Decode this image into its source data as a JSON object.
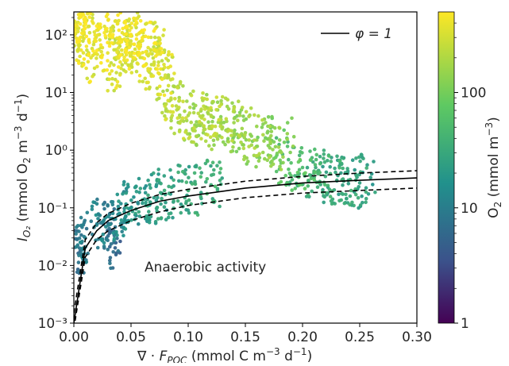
{
  "chart_data": {
    "type": "scatter",
    "title": "",
    "xlabel": "∇ · F_POC (mmol C m⁻³ d⁻¹)",
    "ylabel": "I_O₂ (mmol O₂ m⁻³ d⁻¹)",
    "x_axis": {
      "range": [
        0.0,
        0.3
      ],
      "scale": "linear",
      "ticks": [
        0.0,
        0.05,
        0.1,
        0.15,
        0.2,
        0.25,
        0.3
      ],
      "tick_labels": [
        "0.00",
        "0.05",
        "0.10",
        "0.15",
        "0.20",
        "0.25",
        "0.30"
      ]
    },
    "y_axis": {
      "range": [
        0.001,
        250
      ],
      "scale": "log",
      "ticks": [
        0.001,
        0.01,
        0.1,
        1,
        10,
        100
      ],
      "tick_labels": [
        "10⁻³",
        "10⁻²",
        "10⁻¹",
        "10⁰",
        "10¹",
        "10²"
      ]
    },
    "colorbar": {
      "label": "O₂ (mmol m⁻³)",
      "scale": "log",
      "range": [
        1,
        500
      ],
      "ticks": [
        1,
        10,
        100
      ],
      "tick_labels": [
        "1",
        "10",
        "100"
      ],
      "colormap": "viridis",
      "colors": [
        "#440154",
        "#3b528b",
        "#21918c",
        "#5ec962",
        "#fde725"
      ]
    },
    "legend": {
      "position": "top-right",
      "entries": [
        {
          "label": "φ = 1",
          "style": "solid",
          "color": "#000000"
        }
      ]
    },
    "annotations": [
      {
        "text": "Anaerobic activity"
      }
    ],
    "series": [
      {
        "type": "scatter",
        "color_by": "O₂",
        "description_points": [
          {
            "x": 0.002,
            "y": 150,
            "o2": 400
          },
          {
            "x": 0.005,
            "y": 80,
            "o2": 380
          },
          {
            "x": 0.01,
            "y": 200,
            "o2": 420
          },
          {
            "x": 0.015,
            "y": 40,
            "o2": 350
          },
          {
            "x": 0.02,
            "y": 120,
            "o2": 400
          },
          {
            "x": 0.025,
            "y": 60,
            "o2": 370
          },
          {
            "x": 0.03,
            "y": 180,
            "o2": 430
          },
          {
            "x": 0.035,
            "y": 30,
            "o2": 300
          },
          {
            "x": 0.04,
            "y": 90,
            "o2": 380
          },
          {
            "x": 0.045,
            "y": 50,
            "o2": 350
          },
          {
            "x": 0.05,
            "y": 70,
            "o2": 360
          },
          {
            "x": 0.055,
            "y": 100,
            "o2": 380
          },
          {
            "x": 0.06,
            "y": 40,
            "o2": 330
          },
          {
            "x": 0.065,
            "y": 60,
            "o2": 350
          },
          {
            "x": 0.07,
            "y": 30,
            "o2": 320
          },
          {
            "x": 0.075,
            "y": 50,
            "o2": 340
          },
          {
            "x": 0.08,
            "y": 20,
            "o2": 300
          },
          {
            "x": 0.085,
            "y": 8,
            "o2": 250
          },
          {
            "x": 0.09,
            "y": 5,
            "o2": 220
          },
          {
            "x": 0.1,
            "y": 4,
            "o2": 200
          },
          {
            "x": 0.11,
            "y": 3,
            "o2": 180
          },
          {
            "x": 0.12,
            "y": 4,
            "o2": 190
          },
          {
            "x": 0.13,
            "y": 2.5,
            "o2": 170
          },
          {
            "x": 0.14,
            "y": 3,
            "o2": 160
          },
          {
            "x": 0.15,
            "y": 2,
            "o2": 150
          },
          {
            "x": 0.16,
            "y": 1.5,
            "o2": 140
          },
          {
            "x": 0.17,
            "y": 1.2,
            "o2": 120
          },
          {
            "x": 0.18,
            "y": 1.5,
            "o2": 110
          },
          {
            "x": 0.19,
            "y": 0.6,
            "o2": 60
          },
          {
            "x": 0.2,
            "y": 0.5,
            "o2": 50
          },
          {
            "x": 0.21,
            "y": 0.4,
            "o2": 40
          },
          {
            "x": 0.22,
            "y": 0.35,
            "o2": 35
          },
          {
            "x": 0.23,
            "y": 0.3,
            "o2": 30
          },
          {
            "x": 0.24,
            "y": 0.3,
            "o2": 28
          },
          {
            "x": 0.25,
            "y": 0.27,
            "o2": 25
          },
          {
            "x": 0.005,
            "y": 0.02,
            "o2": 8
          },
          {
            "x": 0.01,
            "y": 0.03,
            "o2": 10
          },
          {
            "x": 0.02,
            "y": 0.05,
            "o2": 12
          },
          {
            "x": 0.03,
            "y": 0.05,
            "o2": 10
          },
          {
            "x": 0.035,
            "y": 0.025,
            "o2": 6
          },
          {
            "x": 0.04,
            "y": 0.08,
            "o2": 15
          },
          {
            "x": 0.05,
            "y": 0.1,
            "o2": 18
          },
          {
            "x": 0.06,
            "y": 0.12,
            "o2": 20
          },
          {
            "x": 0.07,
            "y": 0.15,
            "o2": 22
          },
          {
            "x": 0.08,
            "y": 0.17,
            "o2": 24
          },
          {
            "x": 0.1,
            "y": 0.2,
            "o2": 30
          },
          {
            "x": 0.12,
            "y": 0.25,
            "o2": 35
          }
        ]
      },
      {
        "type": "line",
        "name": "φ = 1",
        "style": "solid",
        "color": "#000000",
        "x": [
          0.0,
          0.01,
          0.02,
          0.03,
          0.05,
          0.075,
          0.1,
          0.15,
          0.2,
          0.25,
          0.3
        ],
        "y": [
          0.001,
          0.02,
          0.04,
          0.06,
          0.09,
          0.13,
          0.16,
          0.22,
          0.27,
          0.3,
          0.33
        ]
      },
      {
        "type": "line",
        "style": "dashed",
        "color": "#000000",
        "x": [
          0.0,
          0.01,
          0.02,
          0.03,
          0.05,
          0.075,
          0.1,
          0.15,
          0.2,
          0.25,
          0.3
        ],
        "y": [
          0.0015,
          0.028,
          0.055,
          0.08,
          0.12,
          0.17,
          0.21,
          0.29,
          0.35,
          0.4,
          0.44
        ]
      },
      {
        "type": "line",
        "style": "dashed",
        "color": "#000000",
        "x": [
          0.0,
          0.01,
          0.02,
          0.03,
          0.05,
          0.075,
          0.1,
          0.15,
          0.2,
          0.25,
          0.3
        ],
        "y": [
          0.0008,
          0.014,
          0.028,
          0.04,
          0.06,
          0.085,
          0.11,
          0.15,
          0.18,
          0.2,
          0.22
        ]
      }
    ]
  }
}
